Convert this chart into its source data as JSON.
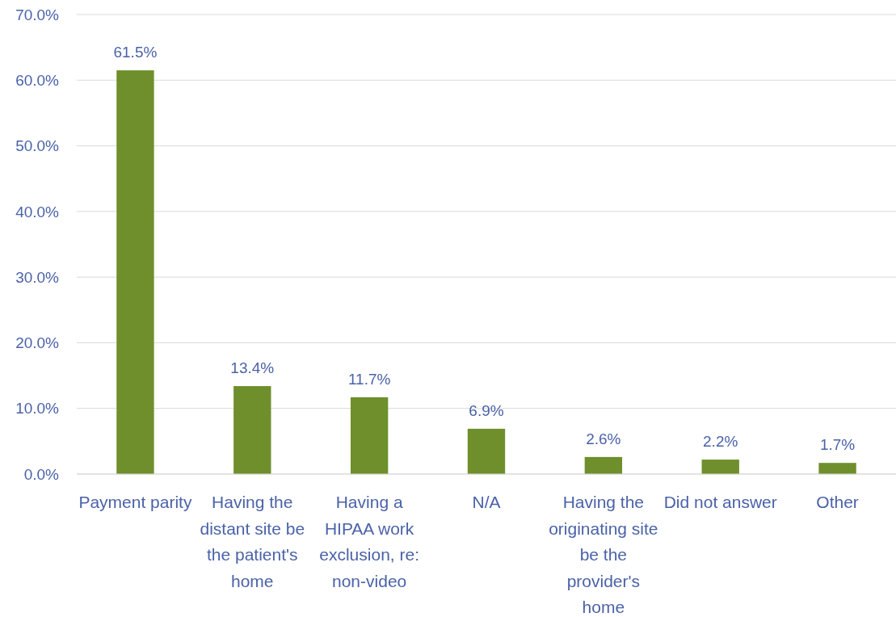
{
  "chart_data": {
    "type": "bar",
    "categories": [
      "Payment parity",
      "Having the distant site be the patient's home",
      "Having a HIPAA work exclusion, re: non-video",
      "N/A",
      "Having the originating site be the provider's home",
      "Did not answer",
      "Other"
    ],
    "values": [
      61.5,
      13.4,
      11.7,
      6.9,
      2.6,
      2.2,
      1.7
    ],
    "value_labels": [
      "61.5%",
      "13.4%",
      "11.7%",
      "6.9%",
      "2.6%",
      "2.2%",
      "1.7%"
    ],
    "color": "#6e8f2c",
    "ylim": [
      0,
      70
    ],
    "yticks": [
      {
        "value": 0,
        "label": "0.0%"
      },
      {
        "value": 10,
        "label": "10.0%"
      },
      {
        "value": 20,
        "label": "20.0%"
      },
      {
        "value": 30,
        "label": "30.0%"
      },
      {
        "value": 40,
        "label": "40.0%"
      },
      {
        "value": 50,
        "label": "50.0%"
      },
      {
        "value": 60,
        "label": "60.0%"
      },
      {
        "value": 70,
        "label": "70.0%"
      }
    ],
    "grid": "y"
  }
}
